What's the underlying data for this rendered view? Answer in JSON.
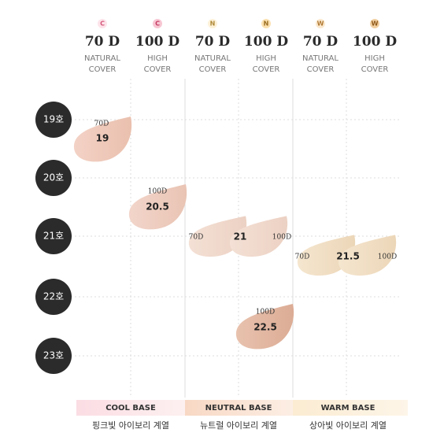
{
  "columns": [
    {
      "badge": "C",
      "name": "70 D",
      "cover1": "NATURAL",
      "cover2": "COVER"
    },
    {
      "badge": "C",
      "name": "100 D",
      "cover1": "HIGH",
      "cover2": "COVER"
    },
    {
      "badge": "N",
      "name": "70 D",
      "cover1": "NATURAL",
      "cover2": "COVER"
    },
    {
      "badge": "N",
      "name": "100 D",
      "cover1": "HIGH",
      "cover2": "COVER"
    },
    {
      "badge": "W",
      "name": "70 D",
      "cover1": "NATURAL",
      "cover2": "COVER"
    },
    {
      "badge": "W",
      "name": "100 D",
      "cover1": "HIGH",
      "cover2": "COVER"
    }
  ],
  "rows": [
    "19호",
    "20호",
    "21호",
    "22호",
    "23호"
  ],
  "swatches": [
    {
      "label": "70D",
      "shade": "19"
    },
    {
      "label": "100D",
      "shade": "20.5"
    },
    {
      "left": "70D",
      "shade": "21",
      "right": "100D"
    },
    {
      "left": "70D",
      "shade": "21.5",
      "right": "100D"
    },
    {
      "label": "100D",
      "shade": "22.5"
    }
  ],
  "bases": [
    {
      "title": "COOL BASE",
      "subtitle": "핑크빛 아이보리 계열"
    },
    {
      "title": "NEUTRAL BASE",
      "subtitle": "뉴트럴 아이보리 계열"
    },
    {
      "title": "WARM BASE",
      "subtitle": "상아빛 아이보리 계열"
    }
  ]
}
